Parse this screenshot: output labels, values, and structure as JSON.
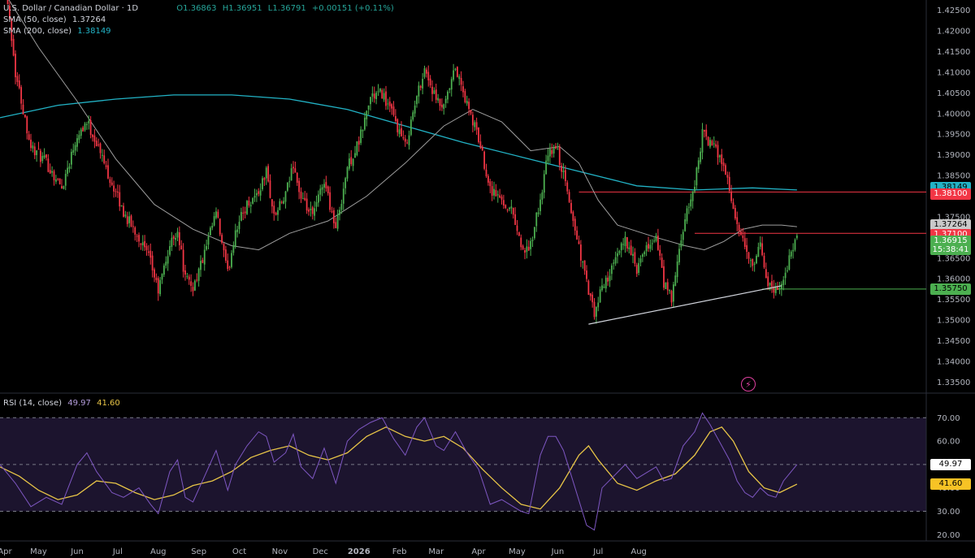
{
  "header": {
    "symbol_title": "U.S. Dollar / Canadian Dollar · 1D",
    "ohlc": {
      "open": "O1.36863",
      "high": "H1.36951",
      "low": "L1.36791",
      "change": "+0.00151 (+0.11%)"
    },
    "sma50_label": "SMA (50, close)",
    "sma50_value": "1.37264",
    "sma200_label": "SMA (200, close)",
    "sma200_value": "1.38149"
  },
  "rsi_legend": {
    "label": "RSI (14, close)",
    "rsi_value": "49.97",
    "ma_value": "41.60"
  },
  "price_labels": [
    {
      "name": "sma200-price-label",
      "text": "1.38149",
      "value": 1.38149,
      "bg": "#22b3c6",
      "fg": "#000000"
    },
    {
      "name": "resistance-1-label",
      "text": "1.38100",
      "value": 1.381,
      "bg": "#f23645",
      "fg": "#ffffff"
    },
    {
      "name": "sma50-price-label",
      "text": "1.37264",
      "value": 1.37264,
      "bg": "#c9c9c9",
      "fg": "#000000"
    },
    {
      "name": "resistance-2-label",
      "text": "1.37100",
      "value": 1.371,
      "bg": "#f23645",
      "fg": "#ffffff"
    },
    {
      "name": "current-price-label",
      "text": "1.36915",
      "sub": "15:38:41",
      "value": 1.36915,
      "bg": "#4caf50",
      "fg": "#ffffff"
    },
    {
      "name": "support-label",
      "text": "1.35750",
      "value": 1.3575,
      "bg": "#4caf50",
      "fg": "#000000"
    }
  ],
  "rsi_labels": [
    {
      "name": "rsi-value-label",
      "text": "49.97",
      "value": 49.97,
      "bg": "#ffffff",
      "fg": "#000000"
    },
    {
      "name": "rsi-ma-label",
      "text": "41.60",
      "value": 41.6,
      "bg": "#f7c325",
      "fg": "#000000"
    }
  ],
  "colors": {
    "up": "#26a69a",
    "up_candle": "#4caf50",
    "down": "#f23645",
    "sma50": "#9e9e9e",
    "sma200": "#22b3c6",
    "rsi": "#7e57c2",
    "rsi_ma": "#e8c547",
    "trendline": "#d1d4dc"
  },
  "chart_data": {
    "type": "candlestick",
    "instrument": "U.S. Dollar / Canadian Dollar",
    "timeframe": "1D",
    "x_ticks": [
      "Apr",
      "May",
      "Jun",
      "Jul",
      "Aug",
      "Sep",
      "Oct",
      "Nov",
      "Dec",
      "2026",
      "Feb",
      "Mar",
      "Apr",
      "May",
      "Jun",
      "Jul",
      "Aug"
    ],
    "y_ticks": [
      "1.42500",
      "1.42000",
      "1.41500",
      "1.41000",
      "1.40500",
      "1.40000",
      "1.39500",
      "1.39000",
      "1.38500",
      "1.38000",
      "1.37500",
      "1.37000",
      "1.36500",
      "1.36000",
      "1.35500",
      "1.35000",
      "1.34500",
      "1.34000",
      "1.33500"
    ],
    "ylim": [
      1.3325,
      1.4275
    ],
    "close_path": [
      {
        "x": 0,
        "y": 1.445
      },
      {
        "x": 8,
        "y": 1.41
      },
      {
        "x": 16,
        "y": 1.392
      },
      {
        "x": 24,
        "y": 1.388
      },
      {
        "x": 32,
        "y": 1.382
      },
      {
        "x": 40,
        "y": 1.395
      },
      {
        "x": 45,
        "y": 1.398
      },
      {
        "x": 50,
        "y": 1.393
      },
      {
        "x": 58,
        "y": 1.383
      },
      {
        "x": 64,
        "y": 1.376
      },
      {
        "x": 72,
        "y": 1.37
      },
      {
        "x": 78,
        "y": 1.364
      },
      {
        "x": 82,
        "y": 1.357
      },
      {
        "x": 88,
        "y": 1.368
      },
      {
        "x": 92,
        "y": 1.372
      },
      {
        "x": 96,
        "y": 1.36
      },
      {
        "x": 100,
        "y": 1.358
      },
      {
        "x": 106,
        "y": 1.366
      },
      {
        "x": 112,
        "y": 1.376
      },
      {
        "x": 118,
        "y": 1.361
      },
      {
        "x": 122,
        "y": 1.372
      },
      {
        "x": 128,
        "y": 1.378
      },
      {
        "x": 134,
        "y": 1.381
      },
      {
        "x": 138,
        "y": 1.386
      },
      {
        "x": 142,
        "y": 1.375
      },
      {
        "x": 148,
        "y": 1.38
      },
      {
        "x": 152,
        "y": 1.388
      },
      {
        "x": 156,
        "y": 1.379
      },
      {
        "x": 162,
        "y": 1.375
      },
      {
        "x": 168,
        "y": 1.384
      },
      {
        "x": 174,
        "y": 1.372
      },
      {
        "x": 180,
        "y": 1.387
      },
      {
        "x": 186,
        "y": 1.393
      },
      {
        "x": 192,
        "y": 1.404
      },
      {
        "x": 198,
        "y": 1.405
      },
      {
        "x": 204,
        "y": 1.399
      },
      {
        "x": 210,
        "y": 1.392
      },
      {
        "x": 216,
        "y": 1.404
      },
      {
        "x": 220,
        "y": 1.411
      },
      {
        "x": 226,
        "y": 1.403
      },
      {
        "x": 230,
        "y": 1.401
      },
      {
        "x": 236,
        "y": 1.411
      },
      {
        "x": 242,
        "y": 1.402
      },
      {
        "x": 248,
        "y": 1.394
      },
      {
        "x": 254,
        "y": 1.382
      },
      {
        "x": 260,
        "y": 1.379
      },
      {
        "x": 266,
        "y": 1.376
      },
      {
        "x": 270,
        "y": 1.368
      },
      {
        "x": 274,
        "y": 1.366
      },
      {
        "x": 280,
        "y": 1.379
      },
      {
        "x": 284,
        "y": 1.39
      },
      {
        "x": 288,
        "y": 1.392
      },
      {
        "x": 292,
        "y": 1.385
      },
      {
        "x": 298,
        "y": 1.372
      },
      {
        "x": 304,
        "y": 1.359
      },
      {
        "x": 308,
        "y": 1.351
      },
      {
        "x": 312,
        "y": 1.358
      },
      {
        "x": 318,
        "y": 1.363
      },
      {
        "x": 324,
        "y": 1.37
      },
      {
        "x": 330,
        "y": 1.362
      },
      {
        "x": 336,
        "y": 1.368
      },
      {
        "x": 340,
        "y": 1.37
      },
      {
        "x": 344,
        "y": 1.359
      },
      {
        "x": 348,
        "y": 1.355
      },
      {
        "x": 354,
        "y": 1.372
      },
      {
        "x": 360,
        "y": 1.383
      },
      {
        "x": 364,
        "y": 1.395
      },
      {
        "x": 368,
        "y": 1.393
      },
      {
        "x": 374,
        "y": 1.389
      },
      {
        "x": 378,
        "y": 1.382
      },
      {
        "x": 382,
        "y": 1.372
      },
      {
        "x": 386,
        "y": 1.368
      },
      {
        "x": 390,
        "y": 1.362
      },
      {
        "x": 394,
        "y": 1.368
      },
      {
        "x": 398,
        "y": 1.359
      },
      {
        "x": 402,
        "y": 1.357
      },
      {
        "x": 406,
        "y": 1.36
      },
      {
        "x": 410,
        "y": 1.366
      },
      {
        "x": 413,
        "y": 1.37
      }
    ],
    "sma50": [
      {
        "x": 0,
        "y": 1.431
      },
      {
        "x": 20,
        "y": 1.416
      },
      {
        "x": 40,
        "y": 1.403
      },
      {
        "x": 60,
        "y": 1.389
      },
      {
        "x": 80,
        "y": 1.378
      },
      {
        "x": 100,
        "y": 1.372
      },
      {
        "x": 120,
        "y": 1.368
      },
      {
        "x": 134,
        "y": 1.367
      },
      {
        "x": 150,
        "y": 1.371
      },
      {
        "x": 170,
        "y": 1.374
      },
      {
        "x": 190,
        "y": 1.38
      },
      {
        "x": 210,
        "y": 1.388
      },
      {
        "x": 230,
        "y": 1.397
      },
      {
        "x": 245,
        "y": 1.401
      },
      {
        "x": 260,
        "y": 1.398
      },
      {
        "x": 275,
        "y": 1.391
      },
      {
        "x": 290,
        "y": 1.392
      },
      {
        "x": 300,
        "y": 1.388
      },
      {
        "x": 310,
        "y": 1.379
      },
      {
        "x": 320,
        "y": 1.373
      },
      {
        "x": 340,
        "y": 1.37
      },
      {
        "x": 355,
        "y": 1.368
      },
      {
        "x": 365,
        "y": 1.367
      },
      {
        "x": 375,
        "y": 1.369
      },
      {
        "x": 385,
        "y": 1.372
      },
      {
        "x": 395,
        "y": 1.373
      },
      {
        "x": 405,
        "y": 1.373
      },
      {
        "x": 413,
        "y": 1.3726
      }
    ],
    "sma200": [
      {
        "x": 0,
        "y": 1.399
      },
      {
        "x": 30,
        "y": 1.402
      },
      {
        "x": 60,
        "y": 1.4035
      },
      {
        "x": 90,
        "y": 1.4045
      },
      {
        "x": 120,
        "y": 1.4045
      },
      {
        "x": 150,
        "y": 1.4035
      },
      {
        "x": 180,
        "y": 1.401
      },
      {
        "x": 210,
        "y": 1.397
      },
      {
        "x": 240,
        "y": 1.393
      },
      {
        "x": 270,
        "y": 1.3895
      },
      {
        "x": 300,
        "y": 1.386
      },
      {
        "x": 330,
        "y": 1.3825
      },
      {
        "x": 360,
        "y": 1.3815
      },
      {
        "x": 390,
        "y": 1.382
      },
      {
        "x": 413,
        "y": 1.3815
      }
    ],
    "horizontal_levels": [
      {
        "name": "resistance-1",
        "value": 1.381,
        "color": "#f23645",
        "from_x": 300
      },
      {
        "name": "resistance-2",
        "value": 1.371,
        "color": "#f23645",
        "from_x": 360
      },
      {
        "name": "support",
        "value": 1.3575,
        "color": "#4caf50",
        "from_x": 395
      }
    ],
    "trendline": {
      "from": {
        "x": 305,
        "y": 1.349
      },
      "to": {
        "x": 405,
        "y": 1.3583
      }
    },
    "rsi": {
      "label": "RSI (14, close)",
      "y_ticks": [
        "70.00",
        "60.00",
        "50.00",
        "40.00",
        "30.00",
        "20.00"
      ],
      "ylim": [
        17,
        76
      ],
      "bands": {
        "upper": 70,
        "middle": 50,
        "lower": 30
      },
      "rsi_path": [
        {
          "x": 0,
          "y": 50
        },
        {
          "x": 8,
          "y": 42
        },
        {
          "x": 16,
          "y": 32
        },
        {
          "x": 24,
          "y": 36
        },
        {
          "x": 32,
          "y": 33
        },
        {
          "x": 40,
          "y": 50
        },
        {
          "x": 45,
          "y": 55
        },
        {
          "x": 50,
          "y": 47
        },
        {
          "x": 58,
          "y": 38
        },
        {
          "x": 64,
          "y": 36
        },
        {
          "x": 72,
          "y": 40
        },
        {
          "x": 78,
          "y": 33
        },
        {
          "x": 82,
          "y": 29
        },
        {
          "x": 88,
          "y": 47
        },
        {
          "x": 92,
          "y": 52
        },
        {
          "x": 96,
          "y": 36
        },
        {
          "x": 100,
          "y": 34
        },
        {
          "x": 106,
          "y": 45
        },
        {
          "x": 112,
          "y": 56
        },
        {
          "x": 118,
          "y": 39
        },
        {
          "x": 122,
          "y": 50
        },
        {
          "x": 128,
          "y": 58
        },
        {
          "x": 134,
          "y": 64
        },
        {
          "x": 138,
          "y": 62
        },
        {
          "x": 142,
          "y": 51
        },
        {
          "x": 148,
          "y": 55
        },
        {
          "x": 152,
          "y": 63
        },
        {
          "x": 156,
          "y": 49
        },
        {
          "x": 162,
          "y": 44
        },
        {
          "x": 168,
          "y": 57
        },
        {
          "x": 174,
          "y": 42
        },
        {
          "x": 180,
          "y": 60
        },
        {
          "x": 186,
          "y": 65
        },
        {
          "x": 192,
          "y": 68
        },
        {
          "x": 198,
          "y": 70
        },
        {
          "x": 204,
          "y": 61
        },
        {
          "x": 210,
          "y": 54
        },
        {
          "x": 216,
          "y": 66
        },
        {
          "x": 220,
          "y": 70
        },
        {
          "x": 226,
          "y": 58
        },
        {
          "x": 230,
          "y": 56
        },
        {
          "x": 236,
          "y": 64
        },
        {
          "x": 242,
          "y": 55
        },
        {
          "x": 248,
          "y": 48
        },
        {
          "x": 254,
          "y": 33
        },
        {
          "x": 260,
          "y": 35
        },
        {
          "x": 266,
          "y": 32
        },
        {
          "x": 270,
          "y": 30
        },
        {
          "x": 274,
          "y": 29
        },
        {
          "x": 280,
          "y": 54
        },
        {
          "x": 284,
          "y": 62
        },
        {
          "x": 288,
          "y": 62
        },
        {
          "x": 292,
          "y": 56
        },
        {
          "x": 298,
          "y": 40
        },
        {
          "x": 304,
          "y": 24
        },
        {
          "x": 308,
          "y": 22
        },
        {
          "x": 312,
          "y": 40
        },
        {
          "x": 318,
          "y": 45
        },
        {
          "x": 324,
          "y": 50
        },
        {
          "x": 330,
          "y": 44
        },
        {
          "x": 336,
          "y": 47
        },
        {
          "x": 340,
          "y": 49
        },
        {
          "x": 344,
          "y": 43
        },
        {
          "x": 348,
          "y": 44
        },
        {
          "x": 354,
          "y": 58
        },
        {
          "x": 360,
          "y": 64
        },
        {
          "x": 364,
          "y": 72
        },
        {
          "x": 368,
          "y": 67
        },
        {
          "x": 374,
          "y": 58
        },
        {
          "x": 378,
          "y": 52
        },
        {
          "x": 382,
          "y": 43
        },
        {
          "x": 386,
          "y": 38
        },
        {
          "x": 390,
          "y": 36
        },
        {
          "x": 394,
          "y": 40
        },
        {
          "x": 398,
          "y": 37
        },
        {
          "x": 402,
          "y": 36
        },
        {
          "x": 406,
          "y": 43
        },
        {
          "x": 410,
          "y": 47
        },
        {
          "x": 413,
          "y": 50
        }
      ],
      "ma_path": [
        {
          "x": 0,
          "y": 49
        },
        {
          "x": 10,
          "y": 45
        },
        {
          "x": 20,
          "y": 39
        },
        {
          "x": 30,
          "y": 35
        },
        {
          "x": 40,
          "y": 37
        },
        {
          "x": 50,
          "y": 43
        },
        {
          "x": 60,
          "y": 42
        },
        {
          "x": 70,
          "y": 38
        },
        {
          "x": 80,
          "y": 35
        },
        {
          "x": 90,
          "y": 37
        },
        {
          "x": 100,
          "y": 41
        },
        {
          "x": 110,
          "y": 43
        },
        {
          "x": 120,
          "y": 47
        },
        {
          "x": 130,
          "y": 53
        },
        {
          "x": 140,
          "y": 56
        },
        {
          "x": 150,
          "y": 58
        },
        {
          "x": 160,
          "y": 54
        },
        {
          "x": 170,
          "y": 52
        },
        {
          "x": 180,
          "y": 55
        },
        {
          "x": 190,
          "y": 62
        },
        {
          "x": 200,
          "y": 66
        },
        {
          "x": 210,
          "y": 62
        },
        {
          "x": 220,
          "y": 60
        },
        {
          "x": 230,
          "y": 62
        },
        {
          "x": 240,
          "y": 57
        },
        {
          "x": 250,
          "y": 48
        },
        {
          "x": 260,
          "y": 40
        },
        {
          "x": 270,
          "y": 33
        },
        {
          "x": 280,
          "y": 31
        },
        {
          "x": 290,
          "y": 40
        },
        {
          "x": 300,
          "y": 54
        },
        {
          "x": 305,
          "y": 58
        },
        {
          "x": 310,
          "y": 52
        },
        {
          "x": 320,
          "y": 42
        },
        {
          "x": 330,
          "y": 39
        },
        {
          "x": 340,
          "y": 43
        },
        {
          "x": 350,
          "y": 46
        },
        {
          "x": 360,
          "y": 54
        },
        {
          "x": 368,
          "y": 64
        },
        {
          "x": 374,
          "y": 66
        },
        {
          "x": 380,
          "y": 60
        },
        {
          "x": 388,
          "y": 47
        },
        {
          "x": 396,
          "y": 40
        },
        {
          "x": 404,
          "y": 38
        },
        {
          "x": 413,
          "y": 41.6
        }
      ]
    }
  }
}
